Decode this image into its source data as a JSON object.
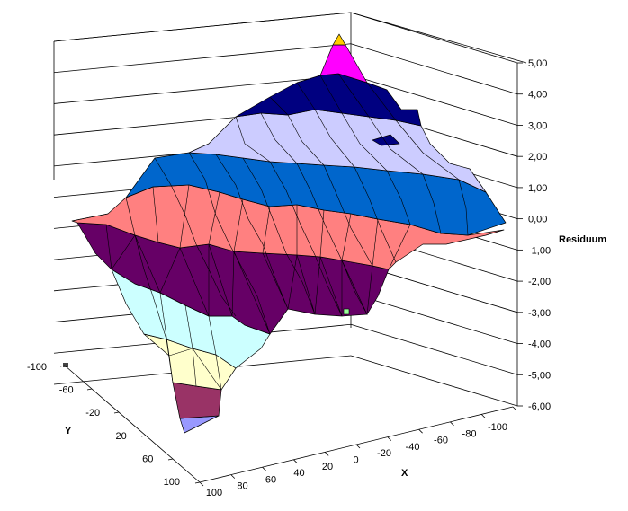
{
  "chart_data": {
    "type": "surface",
    "title": "",
    "zlabel": "Residuum",
    "xlabel": "X",
    "ylabel": "Y",
    "z_ticks": [
      "5,00",
      "4,00",
      "3,00",
      "2,00",
      "1,00",
      "0,00",
      "-1,00",
      "-2,00",
      "-3,00",
      "-4,00",
      "-5,00",
      "-6,00"
    ],
    "x_ticks": [
      "100",
      "80",
      "60",
      "40",
      "20",
      "0",
      "-20",
      "-40",
      "-60",
      "-80",
      "-100"
    ],
    "y_ticks": [
      "-100",
      "-60",
      "-20",
      "20",
      "60",
      "100"
    ],
    "zlim": [
      -6,
      5
    ],
    "xlim": [
      100,
      -100
    ],
    "ylim": [
      -100,
      100
    ],
    "color_bands": [
      {
        "range": [
          -6,
          -5
        ],
        "color": "#9999ff"
      },
      {
        "range": [
          -5,
          -4
        ],
        "color": "#993366"
      },
      {
        "range": [
          -4,
          -3
        ],
        "color": "#ffffcc"
      },
      {
        "range": [
          -3,
          -2
        ],
        "color": "#ccffff"
      },
      {
        "range": [
          -2,
          -1
        ],
        "color": "#660066"
      },
      {
        "range": [
          -1,
          0
        ],
        "color": "#ff8080"
      },
      {
        "range": [
          0,
          1
        ],
        "color": "#0066cc"
      },
      {
        "range": [
          1,
          2
        ],
        "color": "#0066cc"
      },
      {
        "range": [
          2,
          3
        ],
        "color": "#ccccff"
      },
      {
        "range": [
          3,
          4
        ],
        "color": "#ccccff"
      },
      {
        "range": [
          4,
          5
        ],
        "color": "#000080"
      },
      {
        "range": [
          5,
          6
        ],
        "color": "#ff00ff"
      }
    ],
    "peak_color": "#ffcc00",
    "grid": true
  }
}
